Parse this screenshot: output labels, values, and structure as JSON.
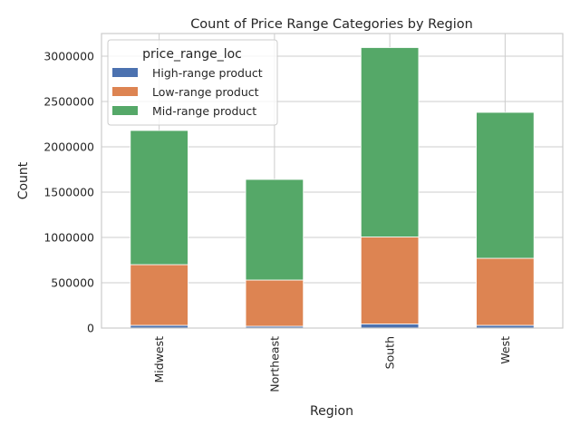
{
  "chart_data": {
    "type": "bar",
    "stacked": true,
    "title": "Count of Price Range Categories by Region",
    "xlabel": "Region",
    "ylabel": "Count",
    "categories": [
      "Midwest",
      "Northeast",
      "South",
      "West"
    ],
    "series": [
      {
        "name": "High-range product",
        "values": [
          30000,
          20000,
          45000,
          30000
        ],
        "color": "#4c72b0"
      },
      {
        "name": "Low-range product",
        "values": [
          670000,
          510000,
          960000,
          740000
        ],
        "color": "#dd8452"
      },
      {
        "name": "Mid-range product",
        "values": [
          1480000,
          1110000,
          2090000,
          1610000
        ],
        "color": "#55a868"
      }
    ],
    "ylim": [
      0,
      3250000
    ],
    "yticks": [
      0,
      500000,
      1000000,
      1500000,
      2000000,
      2500000,
      3000000
    ],
    "grid": true,
    "legend": {
      "title": "price_range_loc",
      "position": "top-left"
    }
  }
}
